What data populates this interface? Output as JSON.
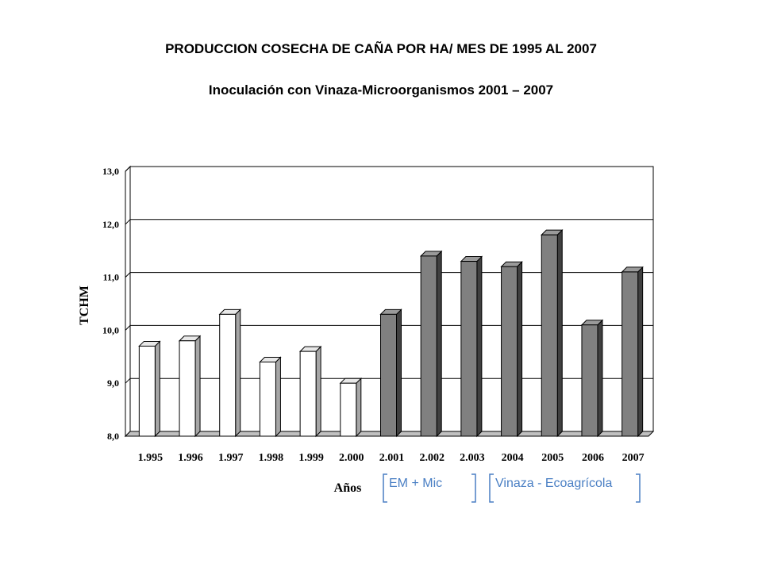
{
  "title": "PRODUCCION COSECHA DE CAÑA POR HA/ MES DE 1995 AL 2007",
  "subtitle": "Inoculación con Vinaza-Microorganismos 2001 – 2007",
  "chart_data": {
    "type": "bar",
    "categories": [
      "1.995",
      "1.996",
      "1.997",
      "1.998",
      "1.999",
      "2.000",
      "2.001",
      "2.002",
      "2.003",
      "2004",
      "2005",
      "2006",
      "2007"
    ],
    "values": [
      9.7,
      9.8,
      10.3,
      9.4,
      9.6,
      9.0,
      10.3,
      11.4,
      11.3,
      11.2,
      11.8,
      10.1,
      11.1
    ],
    "treated": [
      false,
      false,
      false,
      false,
      false,
      false,
      true,
      true,
      true,
      true,
      true,
      true,
      true
    ],
    "ylabel": "TCHM",
    "xlabel": "Años",
    "ylim": [
      8,
      13
    ],
    "yticks": [
      "8,0",
      "9,0",
      "10,0",
      "11,0",
      "12,0",
      "13,0"
    ],
    "grid": true,
    "colors": {
      "untreated_face": "#ffffff",
      "untreated_side": "#a6a6a6",
      "treated_face": "#808080",
      "treated_side": "#404040",
      "legend_text": "#4a7fc4"
    },
    "annotations": [
      "EM + Mic",
      "Vinaza - Ecoagrícola"
    ]
  }
}
